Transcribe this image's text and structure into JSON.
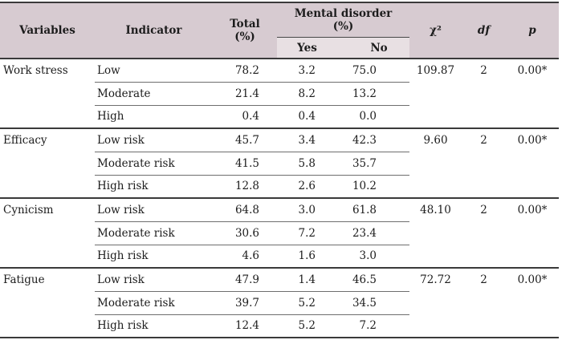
{
  "table": {
    "header": {
      "variables": "Variables",
      "indicator": "Indicator",
      "total_line1": "Total",
      "total_line2": "(%)",
      "mental_line1": "Mental disorder",
      "mental_line2": "(%)",
      "yes": "Yes",
      "no": "No",
      "chi2": "χ²",
      "df": "df",
      "p": "p"
    },
    "groups": [
      {
        "variable": "Work stress",
        "chi2": "109.87",
        "df": "2",
        "p": "0.00*",
        "rows": [
          {
            "indicator": "Low",
            "total": "78.2",
            "yes": "3.2",
            "no": "75.0"
          },
          {
            "indicator": "Moderate",
            "total": "21.4",
            "yes": "8.2",
            "no": "13.2"
          },
          {
            "indicator": "High",
            "total": "0.4",
            "yes": "0.4",
            "no": "0.0"
          }
        ]
      },
      {
        "variable": "Efficacy",
        "chi2": "9.60",
        "df": "2",
        "p": "0.00*",
        "rows": [
          {
            "indicator": "Low risk",
            "total": "45.7",
            "yes": "3.4",
            "no": "42.3"
          },
          {
            "indicator": "Moderate risk",
            "total": "41.5",
            "yes": "5.8",
            "no": "35.7"
          },
          {
            "indicator": "High risk",
            "total": "12.8",
            "yes": "2.6",
            "no": "10.2"
          }
        ]
      },
      {
        "variable": "Cynicism",
        "chi2": "48.10",
        "df": "2",
        "p": "0.00*",
        "rows": [
          {
            "indicator": "Low risk",
            "total": "64.8",
            "yes": "3.0",
            "no": "61.8"
          },
          {
            "indicator": "Moderate risk",
            "total": "30.6",
            "yes": "7.2",
            "no": "23.4"
          },
          {
            "indicator": "High risk",
            "total": "4.6",
            "yes": "1.6",
            "no": "3.0"
          }
        ]
      },
      {
        "variable": "Fatigue",
        "chi2": "72.72",
        "df": "2",
        "p": "0.00*",
        "rows": [
          {
            "indicator": "Low risk",
            "total": "47.9",
            "yes": "1.4",
            "no": "46.5"
          },
          {
            "indicator": "Moderate risk",
            "total": "39.7",
            "yes": "5.2",
            "no": "34.5"
          },
          {
            "indicator": "High risk",
            "total": "12.4",
            "yes": "5.2",
            "no": "7.2"
          }
        ]
      }
    ],
    "colors": {
      "header_bg": "#d7cbd1",
      "subheader_bg": "#e8e0e3",
      "border_dark": "#3a3a3a",
      "border_thin": "#6e6e6e"
    }
  }
}
